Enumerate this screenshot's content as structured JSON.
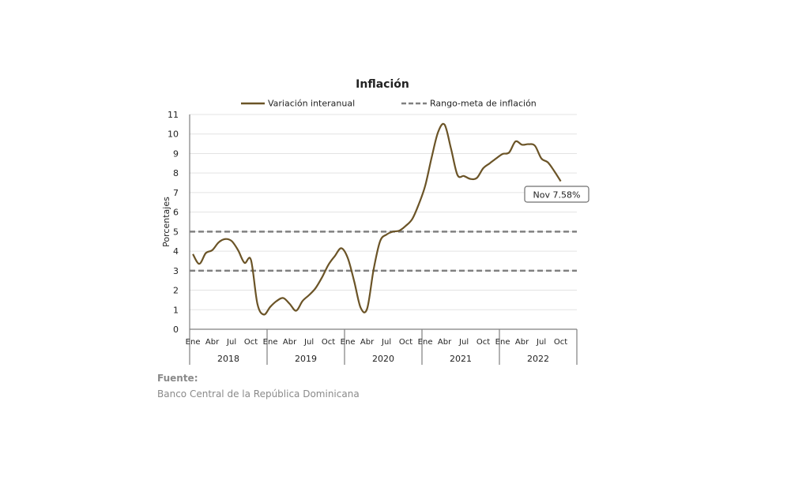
{
  "chart_data": {
    "type": "line",
    "title": "Inflación",
    "ylabel": "Porcentajes",
    "xlabel": "",
    "ylim": [
      0,
      11
    ],
    "yticks": [
      0,
      1,
      2,
      3,
      4,
      5,
      6,
      7,
      8,
      9,
      10,
      11
    ],
    "grid": true,
    "legend_position": "top",
    "month_labels": [
      "Ene",
      "Abr",
      "Jul",
      "Oct"
    ],
    "years": [
      "2018",
      "2019",
      "2020",
      "2021",
      "2022"
    ],
    "series": [
      {
        "name": "Variación interanual",
        "color": "#6b5427",
        "values": [
          3.85,
          3.35,
          3.9,
          4.05,
          4.45,
          4.62,
          4.52,
          4.05,
          3.4,
          3.55,
          1.3,
          0.75,
          1.15,
          1.45,
          1.6,
          1.3,
          0.95,
          1.45,
          1.75,
          2.1,
          2.65,
          3.3,
          3.75,
          4.15,
          3.65,
          2.45,
          1.1,
          1.05,
          3.05,
          4.5,
          4.85,
          5.0,
          5.05,
          5.3,
          5.65,
          6.4,
          7.35,
          8.8,
          10.1,
          10.48,
          9.25,
          7.9,
          7.85,
          7.7,
          7.75,
          8.25,
          8.5,
          8.75,
          8.98,
          9.05,
          9.62,
          9.45,
          9.48,
          9.4,
          8.75,
          8.55,
          8.1,
          7.58
        ]
      },
      {
        "name": "Rango-meta de inflación",
        "color": "#808080",
        "style": "dashed",
        "upper": 5,
        "lower": 3
      }
    ],
    "annotation": {
      "label": "Nov 7.58%",
      "value": 7.58
    }
  },
  "source": {
    "label": "Fuente:",
    "text": "Banco Central de la República Dominicana"
  }
}
